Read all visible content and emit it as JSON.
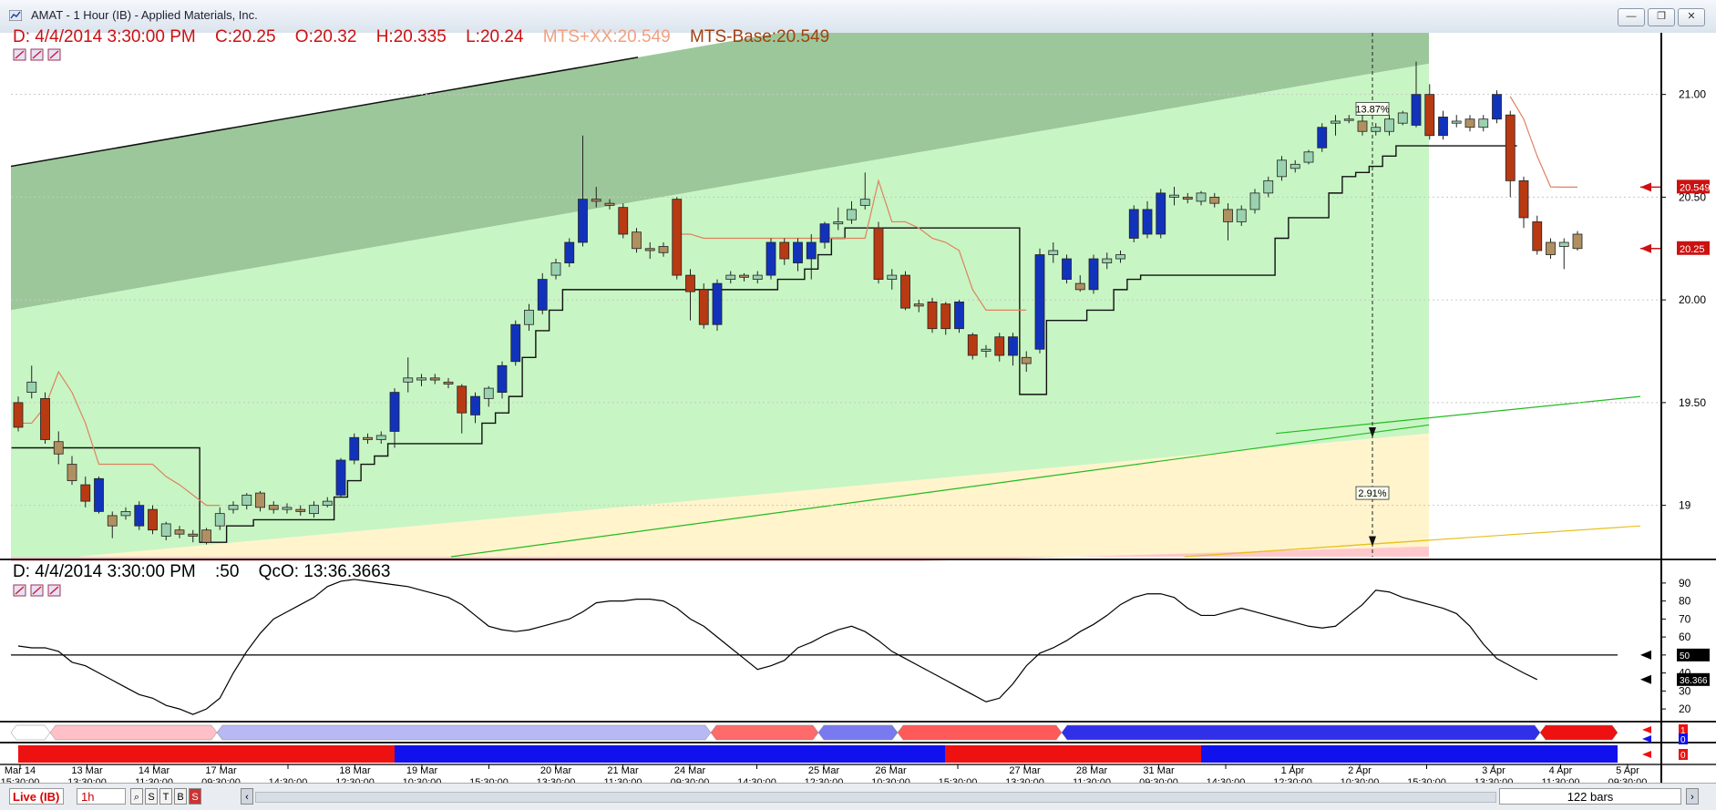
{
  "window": {
    "title": "AMAT  - 1 Hour (IB) - Applied Materials, Inc.",
    "buttons": {
      "minimize": "—",
      "restore": "❐",
      "close": "✕"
    }
  },
  "price_header": {
    "date": "D: 4/4/2014 3:30:00 PM",
    "close": "C:20.25",
    "open": "O:20.32",
    "high": "H:20.335",
    "low": "L:20.24",
    "mts_xx": "MTS+XX:20.549",
    "mts_base": "MTS-Base:20.549"
  },
  "osc_header": {
    "date": "D: 4/4/2014 3:30:00 PM",
    "period": ":50",
    "qco": "QcO: 13:36.3663"
  },
  "colors": {
    "up_candle": "#1133bb",
    "down_candle": "#b83a12",
    "up_light": "#9ad2b0",
    "down_light": "#b09060",
    "channel_dark": "#9cc79a",
    "channel_light": "#c8f5c4",
    "channel_yellow": "#fff4cc",
    "channel_pink": "#ffc8cc",
    "mts_line": "#e08060",
    "price_marker": "#cc1111"
  },
  "price_axis": [
    "21.00",
    "20.50",
    "20.00",
    "19.50",
    "19"
  ],
  "price_tags": [
    "20.549",
    "20.25"
  ],
  "channel_labels": [
    "13.87%",
    "2.91%"
  ],
  "osc_axis": [
    "90",
    "80",
    "70",
    "60",
    "50",
    "40",
    "30",
    "20"
  ],
  "osc_tags": [
    "50",
    "36.366"
  ],
  "ind_tags": [
    "1",
    "0",
    "0"
  ],
  "time_axis": [
    {
      "date": "Mar 14",
      "time": "15:30:00"
    },
    {
      "date": "13 Mar",
      "time": "13:30:00"
    },
    {
      "date": "14 Mar",
      "time": "11:30:00"
    },
    {
      "date": "17 Mar",
      "time": "09:30:00"
    },
    {
      "date": "",
      "time": "14:30:00"
    },
    {
      "date": "18 Mar",
      "time": "12:30:00"
    },
    {
      "date": "19 Mar",
      "time": "10:30:00"
    },
    {
      "date": "",
      "time": "15:30:00"
    },
    {
      "date": "20 Mar",
      "time": "13:30:00"
    },
    {
      "date": "21 Mar",
      "time": "11:30:00"
    },
    {
      "date": "24 Mar",
      "time": "09:30:00"
    },
    {
      "date": "",
      "time": "14:30:00"
    },
    {
      "date": "25 Mar",
      "time": "12:30:00"
    },
    {
      "date": "26 Mar",
      "time": "10:30:00"
    },
    {
      "date": "",
      "time": "15:30:00"
    },
    {
      "date": "27 Mar",
      "time": "13:30:00"
    },
    {
      "date": "28 Mar",
      "time": "11:30:00"
    },
    {
      "date": "31 Mar",
      "time": "09:30:00"
    },
    {
      "date": "",
      "time": "14:30:00"
    },
    {
      "date": "1 Apr",
      "time": "12:30:00"
    },
    {
      "date": "2 Apr",
      "time": "10:30:00"
    },
    {
      "date": "",
      "time": "15:30:00"
    },
    {
      "date": "3 Apr",
      "time": "13:30:00"
    },
    {
      "date": "4 Apr",
      "time": "11:30:00"
    },
    {
      "date": "5 Apr",
      "time": "09:30:00"
    }
  ],
  "statusbar": {
    "live": "Live (IB)",
    "timeframe": "1h",
    "mode_buttons": [
      "S",
      "T",
      "B",
      "S"
    ],
    "bars": "122 bars"
  },
  "chart_data": {
    "type": "candlestick",
    "title": "AMAT  - 1 Hour (IB) - Applied Materials, Inc.",
    "ylim": [
      18.75,
      21.3
    ],
    "candles": [
      [
        19.5,
        19.38,
        19.53,
        19.36
      ],
      [
        19.55,
        19.6,
        19.68,
        19.52
      ],
      [
        19.52,
        19.32,
        19.55,
        19.3
      ],
      [
        19.31,
        19.25,
        19.36,
        19.2
      ],
      [
        19.2,
        19.12,
        19.24,
        19.1
      ],
      [
        19.1,
        19.02,
        19.14,
        18.99
      ],
      [
        18.97,
        19.13,
        19.14,
        18.96
      ],
      [
        18.95,
        18.9,
        18.97,
        18.84
      ],
      [
        18.95,
        18.97,
        18.99,
        18.93
      ],
      [
        18.9,
        19.0,
        19.02,
        18.88
      ],
      [
        18.98,
        18.88,
        19.0,
        18.86
      ],
      [
        18.85,
        18.91,
        18.92,
        18.83
      ],
      [
        18.88,
        18.86,
        18.9,
        18.84
      ],
      [
        18.86,
        18.85,
        18.88,
        18.82
      ],
      [
        18.88,
        18.82,
        18.89,
        18.81
      ],
      [
        18.9,
        18.96,
        18.99,
        18.88
      ],
      [
        18.98,
        19.0,
        19.02,
        18.96
      ],
      [
        19.0,
        19.05,
        19.06,
        18.98
      ],
      [
        19.06,
        18.99,
        19.07,
        18.97
      ],
      [
        19.0,
        18.98,
        19.02,
        18.96
      ],
      [
        18.98,
        18.99,
        19.01,
        18.96
      ],
      [
        18.98,
        18.97,
        19.0,
        18.95
      ],
      [
        18.96,
        19.0,
        19.02,
        18.94
      ],
      [
        19.0,
        19.02,
        19.04,
        18.99
      ],
      [
        19.05,
        19.22,
        19.23,
        19.04
      ],
      [
        19.22,
        19.33,
        19.35,
        19.2
      ],
      [
        19.33,
        19.32,
        19.35,
        19.3
      ],
      [
        19.32,
        19.34,
        19.36,
        19.3
      ],
      [
        19.36,
        19.55,
        19.57,
        19.28
      ],
      [
        19.6,
        19.62,
        19.72,
        19.55
      ],
      [
        19.61,
        19.62,
        19.64,
        19.58
      ],
      [
        19.62,
        19.61,
        19.64,
        19.59
      ],
      [
        19.6,
        19.59,
        19.62,
        19.57
      ],
      [
        19.58,
        19.45,
        19.59,
        19.35
      ],
      [
        19.44,
        19.53,
        19.55,
        19.4
      ],
      [
        19.52,
        19.57,
        19.58,
        19.48
      ],
      [
        19.55,
        19.68,
        19.7,
        19.52
      ],
      [
        19.7,
        19.88,
        19.9,
        19.68
      ],
      [
        19.88,
        19.95,
        19.98,
        19.85
      ],
      [
        19.95,
        20.1,
        20.13,
        19.93
      ],
      [
        20.12,
        20.18,
        20.2,
        20.1
      ],
      [
        20.18,
        20.28,
        20.3,
        20.16
      ],
      [
        20.28,
        20.49,
        20.8,
        20.26
      ],
      [
        20.49,
        20.48,
        20.55,
        20.45
      ],
      [
        20.47,
        20.46,
        20.49,
        20.44
      ],
      [
        20.45,
        20.32,
        20.47,
        20.3
      ],
      [
        20.33,
        20.25,
        20.35,
        20.23
      ],
      [
        20.25,
        20.24,
        20.28,
        20.2
      ],
      [
        20.26,
        20.23,
        20.28,
        20.21
      ],
      [
        20.49,
        20.12,
        20.5,
        20.1
      ],
      [
        20.12,
        20.04,
        20.15,
        19.9
      ],
      [
        20.05,
        19.88,
        20.08,
        19.86
      ],
      [
        19.88,
        20.08,
        20.1,
        19.85
      ],
      [
        20.1,
        20.12,
        20.14,
        20.08
      ],
      [
        20.12,
        20.11,
        20.13,
        20.09
      ],
      [
        20.1,
        20.12,
        20.14,
        20.08
      ],
      [
        20.12,
        20.28,
        20.3,
        20.1
      ],
      [
        20.28,
        20.2,
        20.3,
        20.17
      ],
      [
        20.18,
        20.28,
        20.3,
        20.14
      ],
      [
        20.2,
        20.28,
        20.32,
        20.1
      ],
      [
        20.28,
        20.37,
        20.38,
        20.25
      ],
      [
        20.37,
        20.38,
        20.45,
        20.34
      ],
      [
        20.39,
        20.44,
        20.48,
        20.37
      ],
      [
        20.46,
        20.49,
        20.62,
        20.44
      ],
      [
        20.35,
        20.1,
        20.38,
        20.08
      ],
      [
        20.1,
        20.12,
        20.15,
        20.05
      ],
      [
        20.12,
        19.96,
        20.14,
        19.95
      ],
      [
        19.98,
        19.97,
        20.0,
        19.94
      ],
      [
        19.99,
        19.86,
        20.01,
        19.84
      ],
      [
        19.98,
        19.86,
        19.99,
        19.83
      ],
      [
        19.86,
        19.99,
        20.0,
        19.84
      ],
      [
        19.83,
        19.73,
        19.84,
        19.71
      ],
      [
        19.75,
        19.76,
        19.78,
        19.72
      ],
      [
        19.82,
        19.73,
        19.84,
        19.7
      ],
      [
        19.73,
        19.82,
        19.84,
        19.68
      ],
      [
        19.72,
        19.69,
        19.75,
        19.65
      ],
      [
        19.76,
        20.22,
        20.25,
        19.74
      ],
      [
        20.22,
        20.24,
        20.28,
        20.18
      ],
      [
        20.1,
        20.2,
        20.22,
        20.08
      ],
      [
        20.08,
        20.05,
        20.12,
        20.04
      ],
      [
        20.05,
        20.2,
        20.22,
        20.03
      ],
      [
        20.18,
        20.2,
        20.23,
        20.15
      ],
      [
        20.2,
        20.22,
        20.24,
        20.18
      ],
      [
        20.3,
        20.44,
        20.46,
        20.28
      ],
      [
        20.32,
        20.44,
        20.48,
        20.3
      ],
      [
        20.32,
        20.52,
        20.54,
        20.3
      ],
      [
        20.5,
        20.51,
        20.55,
        20.46
      ],
      [
        20.5,
        20.49,
        20.52,
        20.47
      ],
      [
        20.48,
        20.52,
        20.53,
        20.46
      ],
      [
        20.5,
        20.47,
        20.52,
        20.45
      ],
      [
        20.44,
        20.38,
        20.47,
        20.29
      ],
      [
        20.38,
        20.44,
        20.46,
        20.36
      ],
      [
        20.44,
        20.52,
        20.54,
        20.42
      ],
      [
        20.52,
        20.58,
        20.6,
        20.5
      ],
      [
        20.6,
        20.68,
        20.7,
        20.58
      ],
      [
        20.64,
        20.66,
        20.68,
        20.62
      ],
      [
        20.67,
        20.72,
        20.73,
        20.66
      ],
      [
        20.74,
        20.84,
        20.86,
        20.72
      ],
      [
        20.86,
        20.87,
        20.9,
        20.8
      ],
      [
        20.88,
        20.88,
        20.9,
        20.86
      ],
      [
        20.87,
        20.82,
        20.9,
        20.8
      ],
      [
        20.82,
        20.84,
        20.86,
        20.8
      ],
      [
        20.82,
        20.88,
        20.9,
        20.8
      ],
      [
        20.86,
        20.91,
        20.92,
        20.85
      ],
      [
        20.85,
        21.0,
        21.16,
        20.84
      ],
      [
        21.0,
        20.8,
        21.05,
        20.78
      ],
      [
        20.8,
        20.89,
        20.92,
        20.78
      ],
      [
        20.86,
        20.87,
        20.9,
        20.84
      ],
      [
        20.88,
        20.84,
        20.9,
        20.82
      ],
      [
        20.84,
        20.88,
        20.9,
        20.82
      ],
      [
        20.88,
        21.0,
        21.02,
        20.86
      ],
      [
        20.9,
        20.58,
        20.92,
        20.5
      ],
      [
        20.58,
        20.4,
        20.6,
        20.35
      ],
      [
        20.38,
        20.24,
        20.41,
        20.22
      ],
      [
        20.28,
        20.22,
        20.3,
        20.2
      ],
      [
        20.26,
        20.28,
        20.3,
        20.15
      ],
      [
        20.32,
        20.25,
        20.335,
        20.24
      ]
    ],
    "support_line": [
      19.28,
      19.28,
      19.28,
      19.28,
      19.28,
      19.28,
      19.28,
      19.28,
      19.28,
      19.28,
      19.28,
      19.28,
      19.28,
      19.28,
      18.82,
      18.82,
      18.9,
      18.9,
      18.93,
      18.93,
      18.93,
      18.93,
      18.93,
      18.93,
      19.04,
      19.12,
      19.2,
      19.24,
      19.3,
      19.3,
      19.3,
      19.3,
      19.3,
      19.3,
      19.3,
      19.4,
      19.45,
      19.53,
      19.72,
      19.85,
      19.95,
      20.05,
      20.05,
      20.05,
      20.05,
      20.05,
      20.05,
      20.05,
      20.05,
      20.05,
      20.05,
      20.05,
      20.05,
      20.05,
      20.05,
      20.05,
      20.05,
      20.1,
      20.1,
      20.15,
      20.22,
      20.3,
      20.35,
      20.35,
      20.35,
      20.35,
      20.35,
      20.35,
      20.35,
      20.35,
      20.35,
      20.35,
      20.35,
      20.35,
      20.35,
      19.54,
      19.54,
      19.9,
      19.9,
      19.9,
      19.95,
      19.95,
      20.05,
      20.1,
      20.12,
      20.12,
      20.12,
      20.12,
      20.12,
      20.12,
      20.12,
      20.12,
      20.12,
      20.12,
      20.3,
      20.4,
      20.4,
      20.4,
      20.52,
      20.6,
      20.62,
      20.65,
      20.7,
      20.75,
      20.75,
      20.75,
      20.75,
      20.75,
      20.75,
      20.75,
      20.75,
      20.75
    ],
    "mts_line": [
      19.4,
      19.4,
      19.48,
      19.65,
      19.55,
      19.4,
      19.2,
      19.2,
      19.2,
      19.2,
      19.2,
      19.14,
      19.1,
      19.05,
      19.0,
      19.0,
      null,
      null,
      null,
      null,
      null,
      null,
      null,
      null,
      null,
      null,
      null,
      null,
      null,
      null,
      null,
      null,
      null,
      null,
      null,
      null,
      null,
      null,
      null,
      null,
      null,
      null,
      null,
      null,
      null,
      null,
      null,
      null,
      null,
      20.32,
      20.32,
      20.3,
      20.3,
      20.3,
      20.3,
      20.3,
      20.3,
      20.3,
      20.3,
      20.3,
      20.3,
      20.3,
      20.3,
      20.3,
      20.58,
      20.38,
      20.38,
      20.35,
      20.3,
      20.28,
      20.24,
      20.05,
      19.95,
      19.95,
      19.95,
      19.95,
      null,
      null,
      null,
      null,
      null,
      null,
      null,
      null,
      null,
      null,
      null,
      null,
      null,
      null,
      null,
      null,
      null,
      null,
      null,
      null,
      null,
      null,
      null,
      null,
      null,
      null,
      null,
      null,
      null,
      null,
      null,
      null,
      null,
      null,
      null,
      20.99,
      20.88,
      20.7,
      20.55,
      20.549,
      20.549
    ],
    "oscillator": {
      "ylim": [
        15,
        95
      ],
      "values": [
        55,
        54,
        54,
        52,
        46,
        44,
        40,
        36,
        32,
        28,
        26,
        22,
        20,
        17,
        20,
        26,
        40,
        52,
        62,
        70,
        74,
        78,
        82,
        88,
        91,
        92,
        91,
        90,
        89,
        88,
        86,
        84,
        82,
        78,
        72,
        66,
        64,
        63,
        64,
        66,
        68,
        70,
        74,
        79,
        80,
        80,
        81,
        81,
        80,
        76,
        70,
        66,
        60,
        54,
        48,
        42,
        44,
        47,
        54,
        57,
        61,
        64,
        66,
        63,
        58,
        52,
        48,
        44,
        40,
        36,
        32,
        28,
        24,
        26,
        34,
        44,
        51,
        54,
        58,
        63,
        67,
        72,
        78,
        82,
        84,
        84,
        82,
        76,
        72,
        72,
        74,
        76,
        74,
        72,
        70,
        68,
        66,
        65,
        66,
        72,
        78,
        86,
        85,
        82,
        80,
        78,
        76,
        73,
        66,
        56,
        48,
        44,
        40,
        36.366
      ],
      "baseline": 50
    },
    "channel": {
      "upper_start": 19.95,
      "upper_end": 21.15,
      "mid_start": 18.72,
      "mid_end": 19.35,
      "low_start": 18.6,
      "low_end": 18.8,
      "projection_pct_upper": "13.87%",
      "projection_pct_lower": "2.91%"
    }
  }
}
